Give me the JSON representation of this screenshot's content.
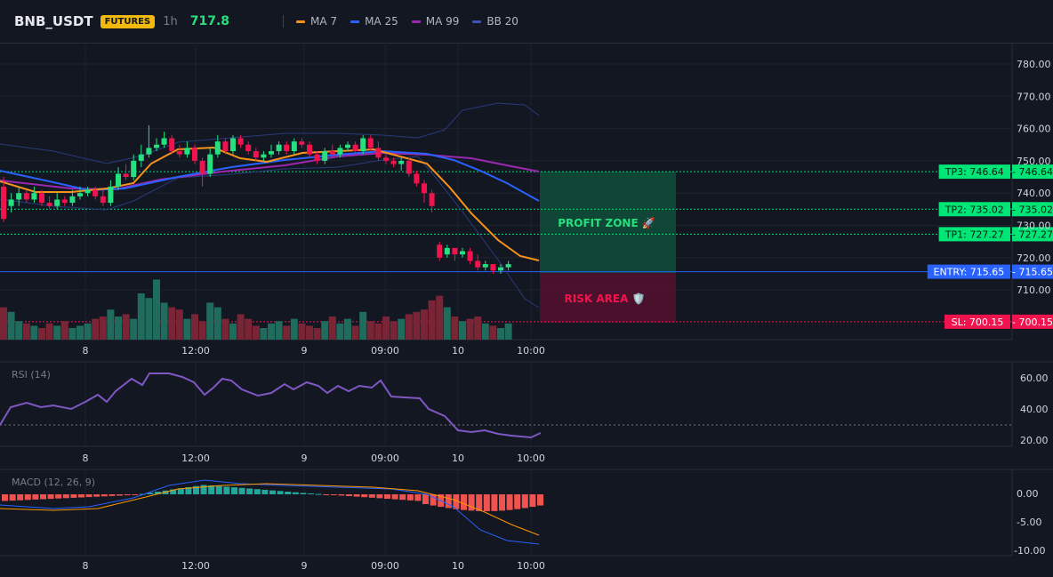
{
  "header": {
    "symbol": "BNB_USDT",
    "badge": "FUTURES",
    "timeframe": "1h",
    "price": "717.8",
    "legend": [
      {
        "label": "MA 7",
        "color": "#f7931a"
      },
      {
        "label": "MA 25",
        "color": "#2962ff"
      },
      {
        "label": "MA 99",
        "color": "#9c27b0"
      },
      {
        "label": "BB 20",
        "color": "#1e3a8a"
      }
    ]
  },
  "main_pane": {
    "price_ticks": [
      "780.00",
      "770.00",
      "760.00",
      "750.00",
      "740.00",
      "730.00",
      "720.00",
      "710.00"
    ],
    "time_labels": [
      "8",
      "12:00",
      "9",
      "09:00",
      "10",
      "10:00"
    ],
    "zones": {
      "profit_label": "PROFIT ZONE 🚀",
      "risk_label": "RISK AREA 🛡️"
    },
    "levels": [
      {
        "tag": "TP3: 746.64",
        "value": "746.64",
        "price": 746.64,
        "color": "#00e676"
      },
      {
        "tag": "TP2: 735.02",
        "value": "735.02",
        "price": 735.02,
        "color": "#00e676"
      },
      {
        "tag": "TP1: 727.27",
        "value": "727.27",
        "price": 727.27,
        "color": "#00e676"
      },
      {
        "tag": "ENTRY: 715.65",
        "value": "715.65",
        "price": 715.65,
        "color": "#2962ff"
      },
      {
        "tag": "SL: 700.15",
        "value": "700.15",
        "price": 700.15,
        "color": "#f0134d"
      }
    ]
  },
  "rsi_pane": {
    "title": "RSI (14)",
    "ticks": [
      "60.00",
      "40.00",
      "20.00"
    ],
    "time_labels": [
      "8",
      "12:00",
      "9",
      "09:00",
      "10",
      "10:00"
    ]
  },
  "macd_pane": {
    "title": "MACD (12, 26, 9)",
    "ticks": [
      "0.00",
      "-5.00",
      "-10.00"
    ],
    "time_labels": [
      "8",
      "12:00",
      "9",
      "09:00",
      "10",
      "10:00"
    ]
  },
  "colors": {
    "up": "#26c281",
    "down": "#f0134d",
    "ma7": "#f7931a",
    "ma25": "#2962ff",
    "ma99": "#9c27b0",
    "bb": "#1e3a8a",
    "rsi": "#7e57c2"
  }
}
